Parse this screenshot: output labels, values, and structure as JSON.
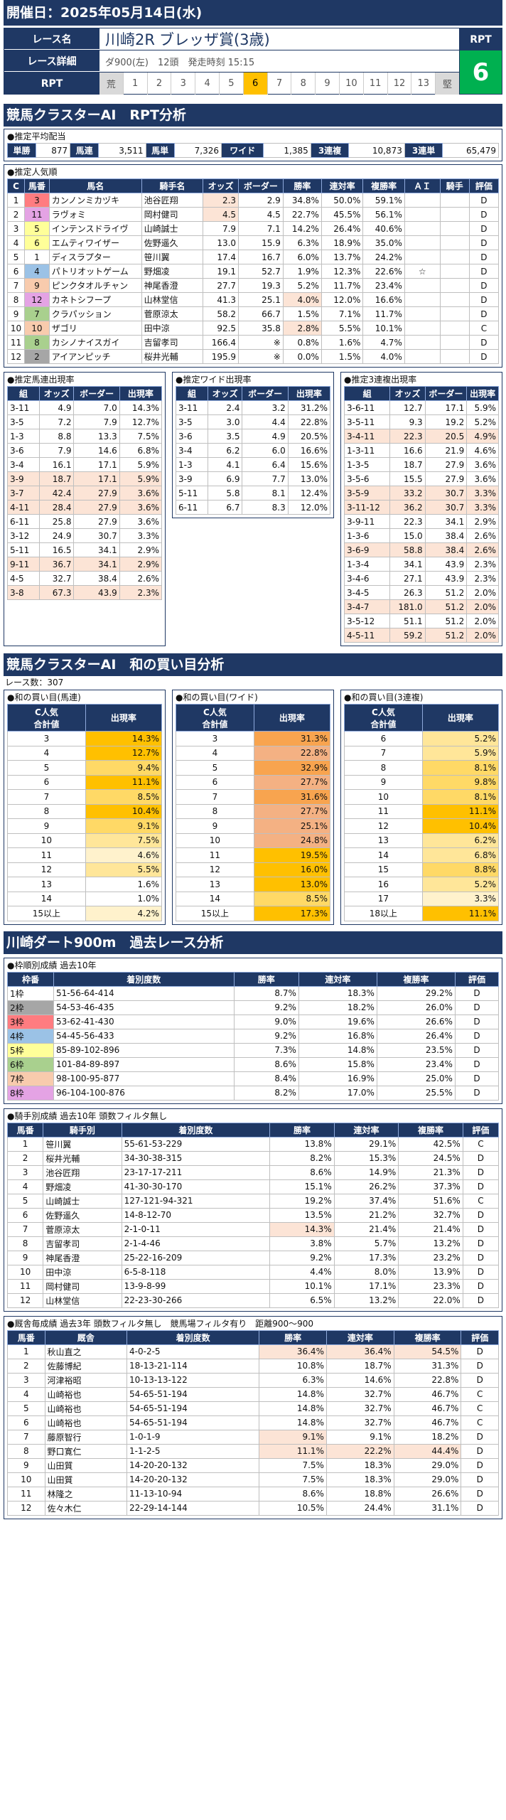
{
  "header": {
    "date": "開催日：2025年05月14日(水)"
  },
  "race": {
    "name_label": "レース名",
    "venue": "川崎2R",
    "name": "ブレッザ賞(3歳)",
    "detail_label": "レース詳細",
    "detail": "ダ900(左)　12頭　発走時刻 15:15",
    "rpt_label": "RPT",
    "rpt_cells": [
      "荒",
      "1",
      "2",
      "3",
      "4",
      "5",
      "6",
      "7",
      "8",
      "9",
      "10",
      "11",
      "12",
      "13",
      "堅"
    ],
    "rpt_selected": "6",
    "rpt_box_label": "RPT",
    "rpt_value": "6"
  },
  "sec1": "競馬クラスターAI　RPT分析",
  "payout": {
    "title": "●推定平均配当",
    "cells": [
      "単勝",
      "877",
      "馬連",
      "3,511",
      "馬単",
      "7,326",
      "ワイド",
      "1,385",
      "3連複",
      "10,873",
      "3連単",
      "65,479"
    ]
  },
  "pop": {
    "title": "●推定人気順",
    "headers": [
      "C",
      "馬番",
      "馬名",
      "騎手名",
      "オッズ",
      "ボーダー",
      "勝率",
      "連対率",
      "複勝率",
      "ＡＩ",
      "騎手",
      "評価"
    ],
    "rows": [
      [
        "1",
        "3",
        "カンノンミカヅキ",
        "池谷匠翔",
        "2.3",
        "2.9",
        "34.8%",
        "50.0%",
        "59.1%",
        "",
        "",
        "D"
      ],
      [
        "2",
        "11",
        "ラヴォミ",
        "岡村健司",
        "4.5",
        "4.5",
        "22.7%",
        "45.5%",
        "56.1%",
        "",
        "",
        "D"
      ],
      [
        "3",
        "5",
        "インテンスドライヴ",
        "山崎誠士",
        "7.9",
        "7.1",
        "14.2%",
        "26.4%",
        "40.6%",
        "",
        "",
        "D"
      ],
      [
        "4",
        "6",
        "エムティワイザー",
        "佐野遥久",
        "13.0",
        "15.9",
        "6.3%",
        "18.9%",
        "35.0%",
        "",
        "",
        "D"
      ],
      [
        "5",
        "1",
        "ディスラプター",
        "笹川翼",
        "17.4",
        "16.7",
        "6.0%",
        "13.7%",
        "24.2%",
        "",
        "",
        "D"
      ],
      [
        "6",
        "4",
        "パトリオットゲーム",
        "野畑凌",
        "19.1",
        "52.7",
        "1.9%",
        "12.3%",
        "22.6%",
        "☆",
        "",
        "D"
      ],
      [
        "7",
        "9",
        "ピンクタオルチャン",
        "神尾香澄",
        "27.7",
        "19.3",
        "5.2%",
        "11.7%",
        "23.4%",
        "",
        "",
        "D"
      ],
      [
        "8",
        "12",
        "カネトシフープ",
        "山林堂信",
        "41.3",
        "25.1",
        "4.0%",
        "12.0%",
        "16.6%",
        "",
        "",
        "D"
      ],
      [
        "9",
        "7",
        "クラパッション",
        "菅原涼太",
        "58.2",
        "66.7",
        "1.5%",
        "7.1%",
        "11.7%",
        "",
        "",
        "D"
      ],
      [
        "10",
        "10",
        "ザゴリ",
        "田中涼",
        "92.5",
        "35.8",
        "2.8%",
        "5.5%",
        "10.1%",
        "",
        "",
        "C"
      ],
      [
        "11",
        "8",
        "カシノナイスガイ",
        "吉留孝司",
        "166.4",
        "※",
        "0.8%",
        "1.6%",
        "4.7%",
        "",
        "",
        "D"
      ],
      [
        "12",
        "2",
        "アイアンピッチ",
        "桜井光輔",
        "195.9",
        "※",
        "0.0%",
        "1.5%",
        "4.0%",
        "",
        "",
        "D"
      ]
    ]
  },
  "umaren": {
    "title": "●推定馬連出現率",
    "headers": [
      "組",
      "オッズ",
      "ボーダー",
      "出現率"
    ],
    "rows": [
      [
        "3-11",
        "4.9",
        "7.0",
        "14.3%"
      ],
      [
        "3-5",
        "7.2",
        "7.9",
        "12.7%"
      ],
      [
        "1-3",
        "8.8",
        "13.3",
        "7.5%"
      ],
      [
        "3-6",
        "7.9",
        "14.6",
        "6.8%"
      ],
      [
        "3-4",
        "16.1",
        "17.1",
        "5.9%"
      ],
      [
        "3-9",
        "18.7",
        "17.1",
        "5.9%"
      ],
      [
        "3-7",
        "42.4",
        "27.9",
        "3.6%"
      ],
      [
        "4-11",
        "28.4",
        "27.9",
        "3.6%"
      ],
      [
        "6-11",
        "25.8",
        "27.9",
        "3.6%"
      ],
      [
        "3-12",
        "24.9",
        "30.7",
        "3.3%"
      ],
      [
        "5-11",
        "16.5",
        "34.1",
        "2.9%"
      ],
      [
        "9-11",
        "36.7",
        "34.1",
        "2.9%"
      ],
      [
        "4-5",
        "32.7",
        "38.4",
        "2.6%"
      ],
      [
        "3-8",
        "67.3",
        "43.9",
        "2.3%"
      ]
    ]
  },
  "wide": {
    "title": "●推定ワイド出現率",
    "headers": [
      "組",
      "オッズ",
      "ボーダー",
      "出現率"
    ],
    "rows": [
      [
        "3-11",
        "2.4",
        "3.2",
        "31.2%"
      ],
      [
        "3-5",
        "3.0",
        "4.4",
        "22.8%"
      ],
      [
        "3-6",
        "3.5",
        "4.9",
        "20.5%"
      ],
      [
        "3-4",
        "6.2",
        "6.0",
        "16.6%"
      ],
      [
        "1-3",
        "4.1",
        "6.4",
        "15.6%"
      ],
      [
        "3-9",
        "6.9",
        "7.7",
        "13.0%"
      ],
      [
        "5-11",
        "5.8",
        "8.1",
        "12.4%"
      ],
      [
        "6-11",
        "6.7",
        "8.3",
        "12.0%"
      ]
    ]
  },
  "trio": {
    "title": "●推定3連複出現率",
    "headers": [
      "組",
      "オッズ",
      "ボーダー",
      "出現率"
    ],
    "rows": [
      [
        "3-6-11",
        "12.7",
        "17.1",
        "5.9%"
      ],
      [
        "3-5-11",
        "9.3",
        "19.2",
        "5.2%"
      ],
      [
        "3-4-11",
        "22.3",
        "20.5",
        "4.9%"
      ],
      [
        "1-3-11",
        "16.6",
        "21.9",
        "4.6%"
      ],
      [
        "1-3-5",
        "18.7",
        "27.9",
        "3.6%"
      ],
      [
        "3-5-6",
        "15.5",
        "27.9",
        "3.6%"
      ],
      [
        "3-5-9",
        "33.2",
        "30.7",
        "3.3%"
      ],
      [
        "3-11-12",
        "36.2",
        "30.7",
        "3.3%"
      ],
      [
        "3-9-11",
        "22.3",
        "34.1",
        "2.9%"
      ],
      [
        "1-3-6",
        "15.0",
        "38.4",
        "2.6%"
      ],
      [
        "3-6-9",
        "58.8",
        "38.4",
        "2.6%"
      ],
      [
        "1-3-4",
        "34.1",
        "43.9",
        "2.3%"
      ],
      [
        "3-4-6",
        "27.1",
        "43.9",
        "2.3%"
      ],
      [
        "3-4-5",
        "26.3",
        "51.2",
        "2.0%"
      ],
      [
        "3-4-7",
        "181.0",
        "51.2",
        "2.0%"
      ],
      [
        "3-5-12",
        "51.1",
        "51.2",
        "2.0%"
      ],
      [
        "4-5-11",
        "59.2",
        "51.2",
        "2.0%"
      ]
    ]
  },
  "sec2": "競馬クラスターAI　和の買い目分析",
  "race_count": "レース数：307",
  "sum_umaren": {
    "title": "●和の買い目(馬連)",
    "h1": "C人気\n合計値",
    "h2": "出現率",
    "rows": [
      [
        "3",
        "14.3%"
      ],
      [
        "4",
        "12.7%"
      ],
      [
        "5",
        "9.4%"
      ],
      [
        "6",
        "11.1%"
      ],
      [
        "7",
        "8.5%"
      ],
      [
        "8",
        "10.4%"
      ],
      [
        "9",
        "9.1%"
      ],
      [
        "10",
        "7.5%"
      ],
      [
        "11",
        "4.6%"
      ],
      [
        "12",
        "5.5%"
      ],
      [
        "13",
        "1.6%"
      ],
      [
        "14",
        "1.0%"
      ],
      [
        "15以上",
        "4.2%"
      ]
    ]
  },
  "sum_wide": {
    "title": "●和の買い目(ワイド)",
    "h1": "C人気\n合計値",
    "h2": "出現率",
    "rows": [
      [
        "3",
        "31.3%"
      ],
      [
        "4",
        "22.8%"
      ],
      [
        "5",
        "32.9%"
      ],
      [
        "6",
        "27.7%"
      ],
      [
        "7",
        "31.6%"
      ],
      [
        "8",
        "27.7%"
      ],
      [
        "9",
        "25.1%"
      ],
      [
        "10",
        "24.8%"
      ],
      [
        "11",
        "19.5%"
      ],
      [
        "12",
        "16.0%"
      ],
      [
        "13",
        "13.0%"
      ],
      [
        "14",
        "8.5%"
      ],
      [
        "15以上",
        "17.3%"
      ]
    ]
  },
  "sum_trio": {
    "title": "●和の買い目(3連複)",
    "h1": "C人気\n合計値",
    "h2": "出現率",
    "rows": [
      [
        "6",
        "5.2%"
      ],
      [
        "7",
        "5.9%"
      ],
      [
        "8",
        "8.1%"
      ],
      [
        "9",
        "9.8%"
      ],
      [
        "10",
        "8.1%"
      ],
      [
        "11",
        "11.1%"
      ],
      [
        "12",
        "10.4%"
      ],
      [
        "13",
        "6.2%"
      ],
      [
        "14",
        "6.8%"
      ],
      [
        "15",
        "8.8%"
      ],
      [
        "16",
        "5.2%"
      ],
      [
        "17",
        "3.3%"
      ],
      [
        "18以上",
        "11.1%"
      ]
    ]
  },
  "sec3": "川崎ダート900m　過去レース分析",
  "waku": {
    "title": "●枠順別成績 過去10年",
    "headers": [
      "枠番",
      "着別度数",
      "勝率",
      "連対率",
      "複勝率",
      "評価"
    ],
    "rows": [
      [
        "1枠",
        "51-56-64-414",
        "8.7%",
        "18.3%",
        "29.2%",
        "D"
      ],
      [
        "2枠",
        "54-53-46-435",
        "9.2%",
        "18.2%",
        "26.0%",
        "D"
      ],
      [
        "3枠",
        "53-62-41-430",
        "9.0%",
        "19.6%",
        "26.6%",
        "D"
      ],
      [
        "4枠",
        "54-45-56-433",
        "9.2%",
        "16.8%",
        "26.4%",
        "D"
      ],
      [
        "5枠",
        "85-89-102-896",
        "7.3%",
        "14.8%",
        "23.5%",
        "D"
      ],
      [
        "6枠",
        "101-84-89-897",
        "8.6%",
        "15.8%",
        "23.4%",
        "D"
      ],
      [
        "7枠",
        "98-100-95-877",
        "8.4%",
        "16.9%",
        "25.0%",
        "D"
      ],
      [
        "8枠",
        "96-104-100-876",
        "8.2%",
        "17.0%",
        "25.5%",
        "D"
      ]
    ]
  },
  "jockey": {
    "title": "●騎手別成績 過去10年 頭数フィルタ無し",
    "headers": [
      "馬番",
      "騎手別",
      "着別度数",
      "勝率",
      "連対率",
      "複勝率",
      "評価"
    ],
    "rows": [
      [
        "1",
        "笹川翼",
        "55-61-53-229",
        "13.8%",
        "29.1%",
        "42.5%",
        "C"
      ],
      [
        "2",
        "桜井光輔",
        "34-30-38-315",
        "8.2%",
        "15.3%",
        "24.5%",
        "D"
      ],
      [
        "3",
        "池谷匠翔",
        "23-17-17-211",
        "8.6%",
        "14.9%",
        "21.3%",
        "D"
      ],
      [
        "4",
        "野畑凌",
        "41-30-30-170",
        "15.1%",
        "26.2%",
        "37.3%",
        "D"
      ],
      [
        "5",
        "山崎誠士",
        "127-121-94-321",
        "19.2%",
        "37.4%",
        "51.6%",
        "C"
      ],
      [
        "6",
        "佐野遥久",
        "14-8-12-70",
        "13.5%",
        "21.2%",
        "32.7%",
        "D"
      ],
      [
        "7",
        "菅原涼太",
        "2-1-0-11",
        "14.3%",
        "21.4%",
        "21.4%",
        "D"
      ],
      [
        "8",
        "吉留孝司",
        "2-1-4-46",
        "3.8%",
        "5.7%",
        "13.2%",
        "D"
      ],
      [
        "9",
        "神尾香澄",
        "25-22-16-209",
        "9.2%",
        "17.3%",
        "23.2%",
        "D"
      ],
      [
        "10",
        "田中涼",
        "6-5-8-118",
        "4.4%",
        "8.0%",
        "13.9%",
        "D"
      ],
      [
        "11",
        "岡村健司",
        "13-9-8-99",
        "10.1%",
        "17.1%",
        "23.3%",
        "D"
      ],
      [
        "12",
        "山林堂信",
        "22-23-30-266",
        "6.5%",
        "13.2%",
        "22.0%",
        "D"
      ]
    ]
  },
  "trainer": {
    "title": "●厩舎毎成績 過去3年 頭数フィルタ無し　競馬場フィルタ有り　距離900～900",
    "headers": [
      "馬番",
      "厩舎",
      "着別度数",
      "勝率",
      "連対率",
      "複勝率",
      "評価"
    ],
    "rows": [
      [
        "1",
        "秋山直之",
        "4-0-2-5",
        "36.4%",
        "36.4%",
        "54.5%",
        "D"
      ],
      [
        "2",
        "佐藤博紀",
        "18-13-21-114",
        "10.8%",
        "18.7%",
        "31.3%",
        "D"
      ],
      [
        "3",
        "河津裕昭",
        "10-13-13-122",
        "6.3%",
        "14.6%",
        "22.8%",
        "D"
      ],
      [
        "4",
        "山崎裕也",
        "54-65-51-194",
        "14.8%",
        "32.7%",
        "46.7%",
        "C"
      ],
      [
        "5",
        "山崎裕也",
        "54-65-51-194",
        "14.8%",
        "32.7%",
        "46.7%",
        "C"
      ],
      [
        "6",
        "山崎裕也",
        "54-65-51-194",
        "14.8%",
        "32.7%",
        "46.7%",
        "C"
      ],
      [
        "7",
        "藤原智行",
        "1-0-1-9",
        "9.1%",
        "9.1%",
        "18.2%",
        "D"
      ],
      [
        "8",
        "野口寛仁",
        "1-1-2-5",
        "11.1%",
        "22.2%",
        "44.4%",
        "D"
      ],
      [
        "9",
        "山田質",
        "14-20-20-132",
        "7.5%",
        "18.3%",
        "29.0%",
        "D"
      ],
      [
        "10",
        "山田質",
        "14-20-20-132",
        "7.5%",
        "18.3%",
        "29.0%",
        "D"
      ],
      [
        "11",
        "林隆之",
        "11-13-10-94",
        "8.6%",
        "18.8%",
        "26.6%",
        "D"
      ],
      [
        "12",
        "佐々木仁",
        "22-29-14-144",
        "10.5%",
        "24.4%",
        "31.1%",
        "D"
      ]
    ]
  },
  "colors": {
    "navy": "#1f3864",
    "green": "#00b050",
    "waku": [
      "#ffffff",
      "#a6a6a6",
      "#ff7c80",
      "#9bc2e6",
      "#ffff99",
      "#a9d08e",
      "#f8cbad",
      "#e4a3e4"
    ]
  }
}
